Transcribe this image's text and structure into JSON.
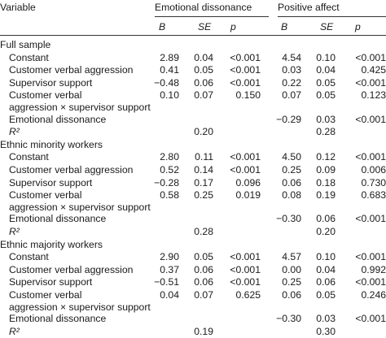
{
  "header": {
    "variable": "Variable",
    "group1": "Emotional dissonance",
    "group2": "Positive affect",
    "cols": [
      "B",
      "SE",
      "p",
      "B",
      "SE",
      "p"
    ]
  },
  "sections": [
    {
      "title": "Full sample",
      "rows": [
        {
          "label": "Constant",
          "cells": [
            "2.89",
            "0.04",
            "<0.001",
            "4.54",
            "0.10",
            "<0.001"
          ]
        },
        {
          "label": "Customer verbal aggression",
          "cells": [
            "0.41",
            "0.05",
            "<0.001",
            "0.03",
            "0.04",
            "0.425"
          ]
        },
        {
          "label": "Supervisor support",
          "cells": [
            "−0.48",
            "0.06",
            "<0.001",
            "0.22",
            "0.05",
            "<0.001"
          ]
        },
        {
          "label": "Customer verbal",
          "label2": "aggression × supervisor support",
          "cells": [
            "0.10",
            "0.07",
            "0.150",
            "0.07",
            "0.05",
            "0.123"
          ]
        },
        {
          "label": "Emotional dissonance",
          "cells": [
            "",
            "",
            "",
            "−0.29",
            "0.03",
            "<0.001"
          ]
        },
        {
          "label": "R²",
          "cells": [
            "",
            "0.20",
            "",
            "",
            "0.28",
            ""
          ]
        }
      ]
    },
    {
      "title": "Ethnic minority workers",
      "rows": [
        {
          "label": "Constant",
          "cells": [
            "2.80",
            "0.11",
            "<0.001",
            "4.50",
            "0.12",
            "<0.001"
          ]
        },
        {
          "label": "Customer verbal aggression",
          "cells": [
            "0.52",
            "0.14",
            "<0.001",
            "0.25",
            "0.09",
            "0.006"
          ]
        },
        {
          "label": "Supervisor support",
          "cells": [
            "−0.28",
            "0.17",
            "0.096",
            "0.06",
            "0.18",
            "0.730"
          ]
        },
        {
          "label": "Customer verbal",
          "label2": "aggression × supervisor support",
          "cells": [
            "0.58",
            "0.25",
            "0.019",
            "0.08",
            "0.19",
            "0.683"
          ]
        },
        {
          "label": "Emotional dissonance",
          "cells": [
            "",
            "",
            "",
            "−0.30",
            "0.06",
            "<0.001"
          ]
        },
        {
          "label": "R²",
          "cells": [
            "",
            "0.28",
            "",
            "",
            "0.20",
            ""
          ]
        }
      ]
    },
    {
      "title": "Ethnic majority workers",
      "rows": [
        {
          "label": "Constant",
          "cells": [
            "2.90",
            "0.05",
            "<0.001",
            "4.57",
            "0.10",
            "<0.001"
          ]
        },
        {
          "label": "Customer verbal aggression",
          "cells": [
            "0.37",
            "0.06",
            "<0.001",
            "0.00",
            "0.04",
            "0.992"
          ]
        },
        {
          "label": "Supervisor support",
          "cells": [
            "−0.51",
            "0.06",
            "<0.001",
            "0.25",
            "0.06",
            "<0.001"
          ]
        },
        {
          "label": "Customer verbal",
          "label2": "aggression × supervisor support",
          "cells": [
            "0.04",
            "0.07",
            "0.625",
            "0.06",
            "0.05",
            "0.246"
          ]
        },
        {
          "label": "Emotional dissonance",
          "cells": [
            "",
            "",
            "",
            "−0.30",
            "0.03",
            "<0.001"
          ]
        },
        {
          "label": "R²",
          "cells": [
            "",
            "0.19",
            "",
            "",
            "0.30",
            ""
          ]
        }
      ]
    }
  ]
}
